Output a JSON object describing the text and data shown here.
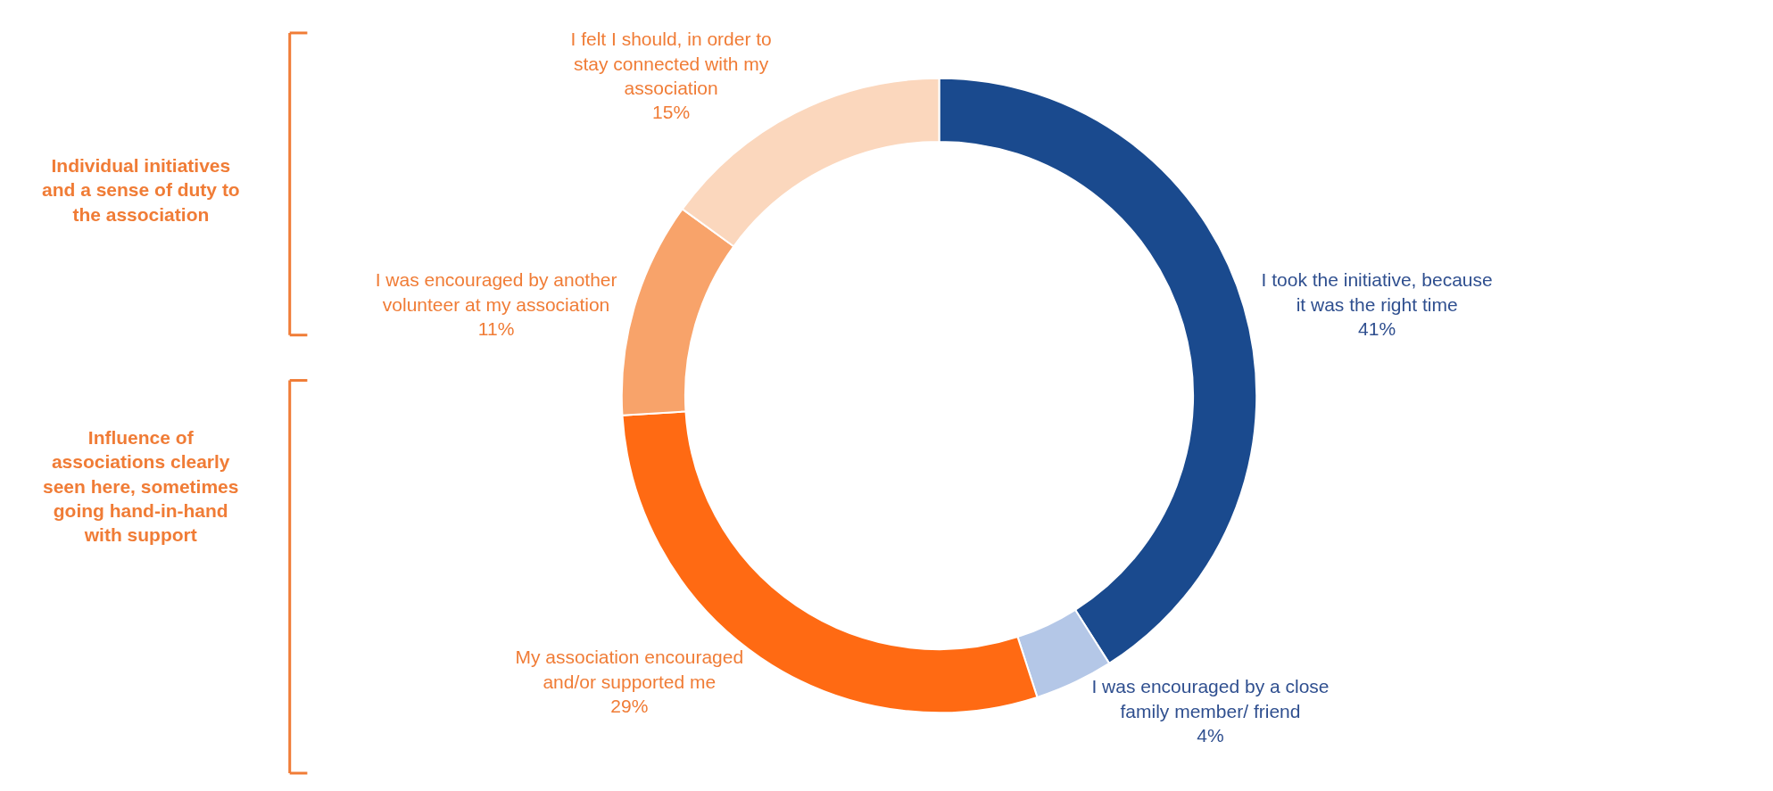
{
  "chart_data": {
    "type": "donut",
    "categories": [
      "I took the initiative, because it was the right time",
      "I was encouraged by a close family member/ friend",
      "My association encouraged and/or supported me",
      "I was encouraged by another volunteer at my association",
      "I felt I should, in order to stay connected with my association"
    ],
    "values": [
      41,
      4,
      29,
      11,
      15
    ],
    "value_labels": [
      "41%",
      "4%",
      "29%",
      "11%",
      "15%"
    ],
    "colors": [
      "#1a4a8e",
      "#b4c7e7",
      "#ff6a13",
      "#f8a36a",
      "#fbd7bd"
    ],
    "annotations": [
      "Individual initiatives and a sense of duty to the association",
      "Influence of associations clearly seen here, sometimes going hand-in-hand with support"
    ],
    "legend": false
  }
}
